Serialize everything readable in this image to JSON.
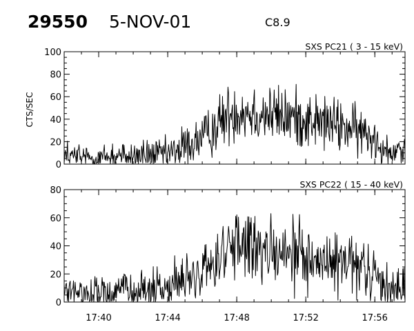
{
  "header": {
    "event_id": "29550",
    "date": "5-NOV-01",
    "goes_class": "C8.9"
  },
  "chart_data": [
    {
      "type": "line",
      "title": "SXS PC21  (  3 - 15 keV)",
      "xlabel": "",
      "ylabel": "CTS/SEC",
      "xlim": [
        "17:38",
        "17:57:45"
      ],
      "ylim": [
        0,
        100
      ],
      "yticks": [
        0,
        20,
        40,
        60,
        80,
        100
      ],
      "xticks": [
        "17:40",
        "17:44",
        "17:48",
        "17:52",
        "17:56"
      ],
      "show_xtick_labels": false,
      "grid": false,
      "series": [
        {
          "x": [
            "17:38",
            "17:39",
            "17:40",
            "17:41",
            "17:42",
            "17:43",
            "17:44",
            "17:44:30",
            "17:45",
            "17:45:30",
            "17:46",
            "17:46:30",
            "17:47",
            "17:47:30",
            "17:48",
            "17:48:30",
            "17:49",
            "17:50",
            "17:51",
            "17:52",
            "17:53",
            "17:54",
            "17:55",
            "17:56",
            "17:56:30",
            "17:57",
            "17:57:45"
          ],
          "y": [
            7,
            6,
            6,
            7,
            7,
            8,
            9,
            12,
            15,
            19,
            23,
            29,
            37,
            44,
            48,
            47,
            46,
            44,
            42,
            40,
            37,
            34,
            29,
            24,
            15,
            14,
            13
          ],
          "color": "#000000"
        }
      ]
    },
    {
      "type": "line",
      "title": "SXS PC22  ( 15 - 40 keV)",
      "xlabel": "",
      "ylabel": "",
      "xlim": [
        "17:38",
        "17:57:45"
      ],
      "ylim": [
        0,
        80
      ],
      "yticks": [
        0,
        20,
        40,
        60,
        80
      ],
      "xticks": [
        "17:40",
        "17:44",
        "17:48",
        "17:52",
        "17:56"
      ],
      "show_xtick_labels": true,
      "grid": false,
      "series": [
        {
          "x": [
            "17:38",
            "17:39",
            "17:40",
            "17:41",
            "17:42",
            "17:43",
            "17:44",
            "17:44:30",
            "17:45",
            "17:45:30",
            "17:46",
            "17:46:30",
            "17:47",
            "17:47:30",
            "17:48",
            "17:48:30",
            "17:49",
            "17:50",
            "17:51",
            "17:52",
            "17:53",
            "17:54",
            "17:55",
            "17:56",
            "17:56:30",
            "17:57",
            "17:57:45"
          ],
          "y": [
            6,
            6,
            7,
            7,
            8,
            9,
            11,
            13,
            15,
            17,
            21,
            27,
            33,
            37,
            38,
            38,
            36,
            34,
            33,
            31,
            29,
            27,
            24,
            19,
            12,
            11,
            10
          ],
          "color": "#000000"
        }
      ]
    }
  ]
}
